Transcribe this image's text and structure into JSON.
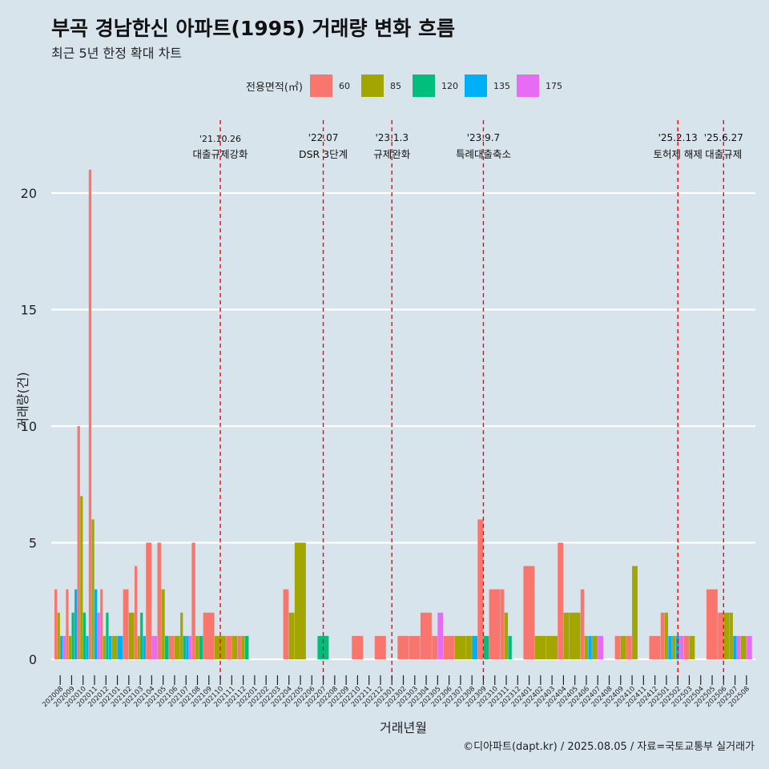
{
  "title": "부곡 경남한신 아파트(1995) 거래량 변화 흐름",
  "subtitle": "최근 5년 한정 확대 차트",
  "caption": "©디아파트(dapt.kr) / 2025.08.05 / 자료=국토교통부 실거래가",
  "legend": {
    "title": "전용면적(㎡)",
    "items": [
      {
        "label": "60",
        "color": "#F8766D"
      },
      {
        "label": "85",
        "color": "#A3A500"
      },
      {
        "label": "120",
        "color": "#00BF7D"
      },
      {
        "label": "135",
        "color": "#00B0F6"
      },
      {
        "label": "175",
        "color": "#E76BF3"
      }
    ]
  },
  "chart_data": {
    "type": "bar",
    "xlabel": "거래년월",
    "ylabel": "거래량(건)",
    "ylim": [
      -0.9,
      21.8
    ],
    "yticks": [
      0,
      5,
      10,
      15,
      20
    ],
    "grid": true,
    "legend_position": "top",
    "categories": [
      "202008",
      "202009",
      "202010",
      "202011",
      "202012",
      "202101",
      "202102",
      "202103",
      "202104",
      "202105",
      "202106",
      "202107",
      "202108",
      "202109",
      "202110",
      "202111",
      "202112",
      "202201",
      "202202",
      "202203",
      "202204",
      "202205",
      "202206",
      "202207",
      "202208",
      "202209",
      "202210",
      "202211",
      "202212",
      "202301",
      "202302",
      "202303",
      "202304",
      "202305",
      "202306",
      "202307",
      "202308",
      "202309",
      "202310",
      "202311",
      "202312",
      "202401",
      "202402",
      "202403",
      "202404",
      "202405",
      "202406",
      "202407",
      "202408",
      "202409",
      "202410",
      "202411",
      "202412",
      "202501",
      "202502",
      "202503",
      "202504",
      "202505",
      "202506",
      "202507",
      "202508"
    ],
    "series": [
      {
        "name": "60",
        "values": [
          3,
          3,
          10,
          21,
          3,
          0,
          3,
          4,
          5,
          5,
          1,
          0,
          5,
          2,
          0,
          1,
          1,
          0,
          0,
          0,
          3,
          0,
          0,
          0,
          0,
          0,
          1,
          0,
          1,
          0,
          1,
          1,
          2,
          1,
          1,
          0,
          0,
          6,
          3,
          3,
          0,
          4,
          0,
          0,
          5,
          0,
          3,
          0,
          0,
          1,
          1,
          0,
          1,
          2,
          0,
          1,
          0,
          3,
          2,
          0,
          0
        ]
      },
      {
        "name": "85",
        "values": [
          2,
          1,
          7,
          6,
          1,
          1,
          2,
          1,
          0,
          3,
          1,
          2,
          1,
          0,
          1,
          1,
          1,
          0,
          0,
          0,
          2,
          5,
          0,
          0,
          0,
          0,
          0,
          0,
          0,
          0,
          0,
          0,
          0,
          0,
          0,
          1,
          1,
          0,
          0,
          2,
          0,
          0,
          1,
          1,
          2,
          2,
          1,
          1,
          0,
          1,
          4,
          0,
          0,
          2,
          1,
          1,
          0,
          0,
          2,
          2,
          1
        ]
      },
      {
        "name": "120",
        "values": [
          0,
          2,
          2,
          0,
          2,
          0,
          0,
          2,
          0,
          1,
          0,
          1,
          1,
          0,
          0,
          0,
          1,
          0,
          0,
          0,
          0,
          0,
          0,
          1,
          0,
          0,
          0,
          0,
          0,
          0,
          0,
          0,
          0,
          0,
          0,
          0,
          0,
          1,
          0,
          1,
          0,
          0,
          0,
          0,
          0,
          0,
          0,
          0,
          0,
          0,
          0,
          0,
          0,
          0,
          0,
          0,
          0,
          0,
          0,
          0,
          0
        ]
      },
      {
        "name": "135",
        "values": [
          1,
          3,
          1,
          3,
          1,
          1,
          0,
          1,
          0,
          0,
          0,
          1,
          0,
          0,
          0,
          0,
          0,
          0,
          0,
          0,
          0,
          0,
          0,
          0,
          0,
          0,
          0,
          0,
          0,
          0,
          0,
          0,
          0,
          0,
          0,
          0,
          1,
          0,
          0,
          0,
          0,
          0,
          0,
          0,
          0,
          0,
          1,
          0,
          0,
          0,
          0,
          0,
          0,
          1,
          1,
          0,
          0,
          0,
          0,
          1,
          0
        ]
      },
      {
        "name": "175",
        "values": [
          1,
          0,
          0,
          2,
          0,
          0,
          0,
          0,
          1,
          0,
          0,
          1,
          0,
          0,
          0,
          0,
          0,
          0,
          0,
          0,
          0,
          0,
          0,
          0,
          0,
          0,
          0,
          0,
          0,
          0,
          0,
          0,
          0,
          2,
          0,
          0,
          0,
          0,
          0,
          0,
          0,
          0,
          0,
          0,
          0,
          0,
          0,
          1,
          0,
          0,
          0,
          0,
          0,
          0,
          1,
          0,
          0,
          0,
          0,
          1,
          1
        ]
      }
    ],
    "events": [
      {
        "x": "202110",
        "date": "'21.10.26",
        "label": "대출규제강화"
      },
      {
        "x": "202207",
        "date": "'22.07",
        "label": "DSR 3단계"
      },
      {
        "x": "202301",
        "date": "'23.1.3",
        "label": "규제완화"
      },
      {
        "x": "202309",
        "date": "'23.9.7",
        "label": "특례대출축소"
      },
      {
        "x": "202502",
        "date": "'25.2.13",
        "label": "토허제 해제"
      },
      {
        "x": "202506",
        "date": "'25.6.27",
        "label": "대출규제"
      }
    ]
  }
}
